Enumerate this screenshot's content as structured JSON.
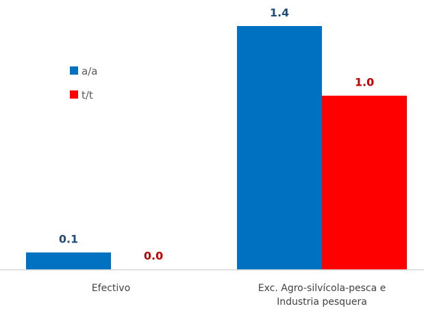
{
  "chart_data": {
    "type": "bar",
    "categories": [
      [
        "Efectivo"
      ],
      [
        "Exc. Agro-silvícola-pesca e",
        "Industria pesquera"
      ]
    ],
    "series": [
      {
        "name": "a/a",
        "values": [
          0.1,
          1.4
        ],
        "labels": [
          "0.1",
          "1.4"
        ],
        "color": "#0070C0",
        "label_color": "#1F4E79"
      },
      {
        "name": "t/t",
        "values": [
          0.0,
          1.0
        ],
        "labels": [
          "0.0",
          "1.0"
        ],
        "color": "#FF0000",
        "label_color": "#C00000"
      }
    ],
    "ylim": [
      0,
      1.4
    ],
    "legend": "upper-left",
    "grid": false
  }
}
